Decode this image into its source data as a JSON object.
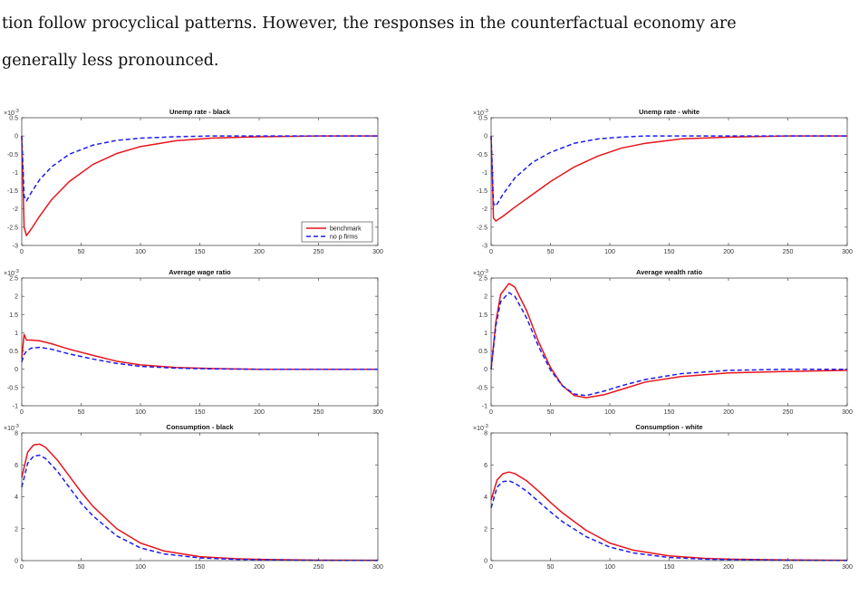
{
  "paragraph": {
    "line1": "tion follow procyclical patterns. However, the responses in the counterfactual economy are",
    "line2": "generally less pronounced."
  },
  "chart_data": [
    {
      "type": "line",
      "title": "Unemp rate - black",
      "exponent_label": "×10",
      "exponent_power": "-3",
      "xlim": [
        0,
        300
      ],
      "ylim": [
        -3,
        0.5
      ],
      "xticks": [
        0,
        50,
        100,
        150,
        200,
        250,
        300
      ],
      "yticks": [
        -3,
        -2.5,
        -2,
        -1.5,
        -1,
        -0.5,
        0,
        0.5
      ],
      "legend": "bottom-right",
      "series": [
        {
          "name": "benchmark",
          "color": "#e8141b",
          "style": "solid",
          "x": [
            0,
            2,
            4,
            8,
            15,
            25,
            40,
            60,
            80,
            100,
            130,
            160,
            200,
            250,
            300
          ],
          "y": [
            0,
            -2.5,
            -2.73,
            -2.55,
            -2.2,
            -1.75,
            -1.25,
            -0.78,
            -0.48,
            -0.29,
            -0.13,
            -0.06,
            -0.02,
            0,
            0
          ]
        },
        {
          "name": "no p firms",
          "color": "#1c1cf0",
          "style": "dashed",
          "x": [
            0,
            2,
            4,
            8,
            15,
            25,
            40,
            60,
            80,
            100,
            130,
            160,
            200,
            250,
            300
          ],
          "y": [
            0,
            -1.65,
            -1.78,
            -1.55,
            -1.2,
            -0.85,
            -0.5,
            -0.25,
            -0.12,
            -0.06,
            -0.02,
            0,
            0,
            0,
            0
          ]
        }
      ]
    },
    {
      "type": "line",
      "title": "Unemp rate - white",
      "exponent_label": "×10",
      "exponent_power": "-3",
      "xlim": [
        0,
        300
      ],
      "ylim": [
        -3,
        0.5
      ],
      "xticks": [
        0,
        50,
        100,
        150,
        200,
        250,
        300
      ],
      "yticks": [
        -3,
        -2.5,
        -2,
        -1.5,
        -1,
        -0.5,
        0,
        0.5
      ],
      "series": [
        {
          "name": "benchmark",
          "color": "#e8141b",
          "style": "solid",
          "x": [
            0,
            2,
            4,
            10,
            20,
            35,
            50,
            70,
            90,
            110,
            130,
            160,
            200,
            250,
            300
          ],
          "y": [
            0,
            -2.25,
            -2.33,
            -2.2,
            -1.95,
            -1.6,
            -1.25,
            -0.85,
            -0.55,
            -0.33,
            -0.2,
            -0.08,
            -0.03,
            0,
            0
          ]
        },
        {
          "name": "no p firms",
          "color": "#1c1cf0",
          "style": "dashed",
          "x": [
            0,
            2,
            4,
            10,
            20,
            35,
            50,
            70,
            90,
            110,
            130,
            160,
            200,
            250,
            300
          ],
          "y": [
            0,
            -1.85,
            -1.92,
            -1.6,
            -1.15,
            -0.72,
            -0.45,
            -0.2,
            -0.08,
            -0.03,
            0,
            0,
            0,
            0,
            0
          ]
        }
      ]
    },
    {
      "type": "line",
      "title": "Average wage ratio",
      "exponent_label": "×10",
      "exponent_power": "-3",
      "xlim": [
        0,
        300
      ],
      "ylim": [
        -1,
        2.5
      ],
      "xticks": [
        0,
        50,
        100,
        150,
        200,
        250,
        300
      ],
      "yticks": [
        -1,
        -0.5,
        0,
        0.5,
        1,
        1.5,
        2,
        2.5
      ],
      "series": [
        {
          "name": "benchmark",
          "color": "#e8141b",
          "style": "solid",
          "x": [
            0,
            2,
            4,
            8,
            15,
            25,
            40,
            60,
            80,
            100,
            130,
            160,
            200,
            250,
            300
          ],
          "y": [
            0.3,
            0.95,
            0.8,
            0.8,
            0.78,
            0.7,
            0.55,
            0.38,
            0.22,
            0.12,
            0.05,
            0.02,
            0,
            0,
            0
          ]
        },
        {
          "name": "no p firms",
          "color": "#1c1cf0",
          "style": "dashed",
          "x": [
            0,
            2,
            4,
            8,
            15,
            25,
            40,
            60,
            80,
            100,
            130,
            160,
            200,
            250,
            300
          ],
          "y": [
            0.2,
            0.4,
            0.5,
            0.58,
            0.6,
            0.55,
            0.42,
            0.28,
            0.16,
            0.08,
            0.03,
            0.01,
            0,
            0,
            0
          ]
        }
      ]
    },
    {
      "type": "line",
      "title": "Average wealth ratio",
      "exponent_label": "×10",
      "exponent_power": "-3",
      "xlim": [
        0,
        300
      ],
      "ylim": [
        -1,
        2.5
      ],
      "xticks": [
        0,
        50,
        100,
        150,
        200,
        250,
        300
      ],
      "yticks": [
        -1,
        -0.5,
        0,
        0.5,
        1,
        1.5,
        2,
        2.5
      ],
      "series": [
        {
          "name": "benchmark",
          "color": "#e8141b",
          "style": "solid",
          "x": [
            0,
            4,
            8,
            15,
            20,
            30,
            40,
            50,
            60,
            70,
            80,
            95,
            110,
            130,
            160,
            200,
            250,
            300
          ],
          "y": [
            0,
            1.3,
            2.05,
            2.35,
            2.25,
            1.6,
            0.75,
            0.05,
            -0.45,
            -0.72,
            -0.78,
            -0.7,
            -0.55,
            -0.35,
            -0.2,
            -0.1,
            -0.06,
            -0.03
          ]
        },
        {
          "name": "no p firms",
          "color": "#1c1cf0",
          "style": "dashed",
          "x": [
            0,
            4,
            8,
            15,
            20,
            30,
            40,
            50,
            60,
            70,
            80,
            95,
            110,
            130,
            160,
            200,
            250,
            300
          ],
          "y": [
            0,
            1.2,
            1.85,
            2.1,
            2.0,
            1.4,
            0.62,
            -0.02,
            -0.45,
            -0.68,
            -0.72,
            -0.6,
            -0.45,
            -0.28,
            -0.12,
            -0.03,
            0,
            0
          ]
        }
      ]
    },
    {
      "type": "line",
      "title": "Consumption - black",
      "exponent_label": "×10",
      "exponent_power": "-3",
      "xlim": [
        0,
        300
      ],
      "ylim": [
        0,
        8
      ],
      "xticks": [
        0,
        50,
        100,
        150,
        200,
        250,
        300
      ],
      "yticks": [
        0,
        2,
        4,
        6,
        8
      ],
      "series": [
        {
          "name": "benchmark",
          "color": "#e8141b",
          "style": "solid",
          "x": [
            0,
            5,
            10,
            15,
            20,
            30,
            40,
            50,
            60,
            80,
            100,
            120,
            150,
            180,
            200,
            250,
            300
          ],
          "y": [
            5.2,
            6.8,
            7.25,
            7.3,
            7.1,
            6.3,
            5.3,
            4.3,
            3.4,
            2.0,
            1.1,
            0.6,
            0.25,
            0.12,
            0.08,
            0.03,
            0.02
          ]
        },
        {
          "name": "no p firms",
          "color": "#1c1cf0",
          "style": "dashed",
          "x": [
            0,
            5,
            10,
            15,
            20,
            30,
            40,
            50,
            60,
            80,
            100,
            120,
            150,
            180,
            200,
            250,
            300
          ],
          "y": [
            4.6,
            6.1,
            6.55,
            6.6,
            6.4,
            5.6,
            4.6,
            3.6,
            2.8,
            1.55,
            0.8,
            0.42,
            0.17,
            0.08,
            0.05,
            0.02,
            0.01
          ]
        }
      ]
    },
    {
      "type": "line",
      "title": "Consumption - white",
      "exponent_label": "×10",
      "exponent_power": "-3",
      "xlim": [
        0,
        300
      ],
      "ylim": [
        0,
        8
      ],
      "xticks": [
        0,
        50,
        100,
        150,
        200,
        250,
        300
      ],
      "yticks": [
        0,
        2,
        4,
        6,
        8
      ],
      "series": [
        {
          "name": "benchmark",
          "color": "#e8141b",
          "style": "solid",
          "x": [
            0,
            5,
            10,
            15,
            20,
            30,
            40,
            50,
            60,
            80,
            100,
            120,
            150,
            180,
            200,
            250,
            300
          ],
          "y": [
            3.8,
            5.05,
            5.45,
            5.55,
            5.45,
            5.0,
            4.35,
            3.65,
            3.0,
            1.9,
            1.1,
            0.65,
            0.3,
            0.14,
            0.09,
            0.04,
            0.02
          ]
        },
        {
          "name": "no p firms",
          "color": "#1c1cf0",
          "style": "dashed",
          "x": [
            0,
            5,
            10,
            15,
            20,
            30,
            40,
            50,
            60,
            80,
            100,
            120,
            150,
            180,
            200,
            250,
            300
          ],
          "y": [
            3.3,
            4.6,
            4.95,
            5.0,
            4.85,
            4.35,
            3.7,
            3.05,
            2.45,
            1.5,
            0.85,
            0.48,
            0.2,
            0.09,
            0.06,
            0.03,
            0.01
          ]
        }
      ]
    }
  ]
}
